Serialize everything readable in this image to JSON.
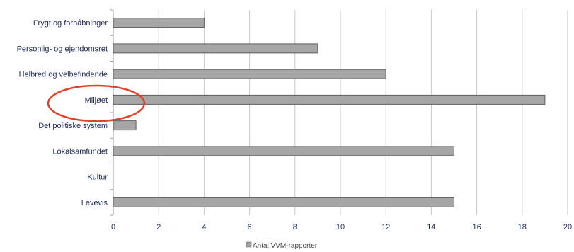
{
  "chart_data": {
    "type": "bar",
    "orientation": "horizontal",
    "categories": [
      "Frygt og forhåbninger",
      "Personlig- og ejendomsret",
      "Helbred og velbefindende",
      "Miljøet",
      "Det politiske system",
      "Lokalsamfundet",
      "Kultur",
      "Levevis"
    ],
    "series": [
      {
        "name": "Antal VVM-rapporter",
        "values": [
          4,
          9,
          12,
          19,
          1,
          15,
          0,
          15
        ]
      }
    ],
    "xticks": [
      "0",
      "2",
      "4",
      "6",
      "8",
      "10",
      "12",
      "14",
      "16",
      "18",
      "20"
    ],
    "xlim": [
      0,
      20
    ],
    "grid": true,
    "legend_position": "bottom",
    "highlighted_category": "Miljøet",
    "colors": {
      "bar_fill": "#a6a6a6",
      "bar_stroke": "#5f5f5f",
      "grid": "#c8c8c8",
      "axis_text": "#1f2a5c",
      "highlight_ellipse": "#e2412b"
    }
  }
}
